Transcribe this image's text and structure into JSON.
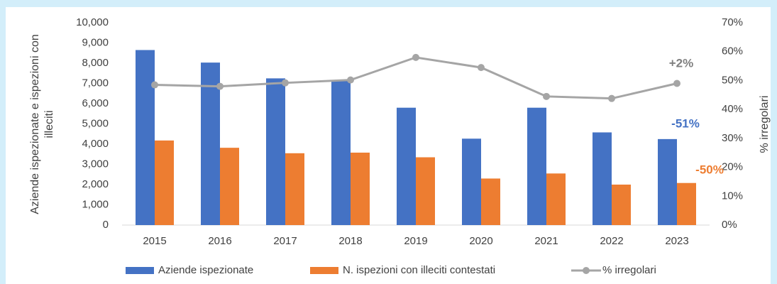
{
  "chart_data": {
    "type": "bar",
    "y_label": [
      "Aziende ispezionate e ispezioni con",
      "illeciti"
    ],
    "y2_label": "% irregolari",
    "categories": [
      "2015",
      "2016",
      "2017",
      "2018",
      "2019",
      "2020",
      "2021",
      "2022",
      "2023"
    ],
    "series": [
      {
        "name": "Aziende ispezionate",
        "color": "#4472c4",
        "type": "bar",
        "values": [
          8650,
          8030,
          7250,
          7150,
          5800,
          4270,
          5800,
          4580,
          4250
        ]
      },
      {
        "name": "N. ispezioni con illeciti contestati",
        "color": "#ed7d31",
        "type": "bar",
        "values": [
          4180,
          3820,
          3550,
          3580,
          3350,
          2300,
          2550,
          2000,
          2080
        ]
      },
      {
        "name": "% irregolari",
        "color": "#a5a5a5",
        "type": "line",
        "axis": "y2",
        "values": [
          48.5,
          48,
          49.2,
          50.2,
          58,
          54.5,
          44.5,
          43.8,
          49
        ]
      }
    ],
    "ylim": [
      0,
      10000
    ],
    "yticks": [
      0,
      {
        "value": 1000,
        "label": "1,000"
      },
      {
        "value": 2000,
        "label": "2,000"
      },
      {
        "value": 3000,
        "label": "3,000"
      },
      {
        "value": 4000,
        "label": "4,000"
      },
      {
        "value": 5000,
        "label": "5,000"
      },
      {
        "value": 6000,
        "label": "6,000"
      },
      {
        "value": 7000,
        "label": "7,000"
      },
      {
        "value": 8000,
        "label": "8,000"
      },
      {
        "value": 9000,
        "label": "9,000"
      },
      {
        "value": 10000,
        "label": "10,000"
      }
    ],
    "y2lim": [
      0,
      70
    ],
    "y2ticks": [
      {
        "value": 0,
        "label": "0%"
      },
      {
        "value": 10,
        "label": "10%"
      },
      {
        "value": 20,
        "label": "20%"
      },
      {
        "value": 30,
        "label": "30%"
      },
      {
        "value": 40,
        "label": "40%"
      },
      {
        "value": 50,
        "label": "50%"
      },
      {
        "value": 60,
        "label": "60%"
      },
      {
        "value": 70,
        "label": "70%"
      }
    ],
    "annotations": [
      {
        "text": "+2%",
        "color": "#7f7f7f"
      },
      {
        "text": "-51%",
        "color": "#4472c4"
      },
      {
        "text": "-50%",
        "color": "#ed7d31"
      }
    ],
    "grid": false,
    "legend": "bottom"
  }
}
